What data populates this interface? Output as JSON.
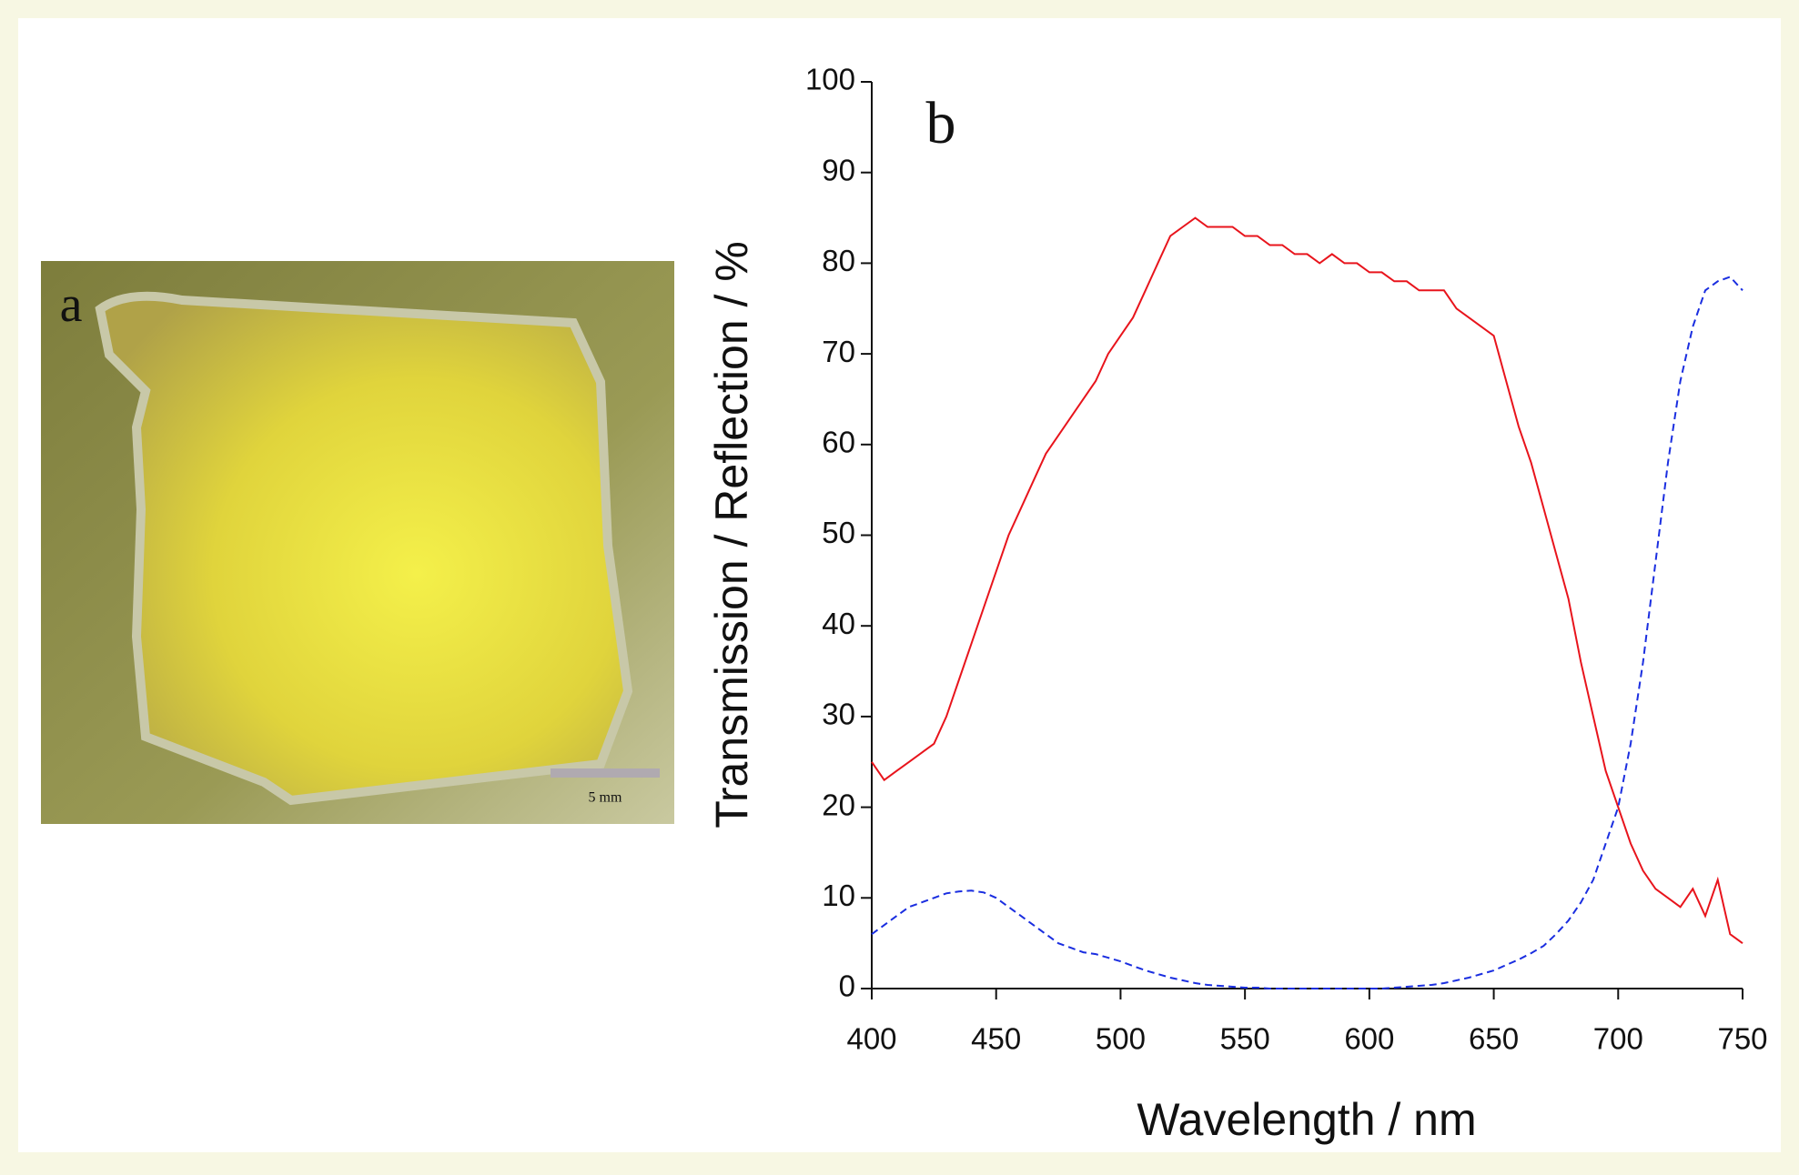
{
  "panel_a": {
    "label": "a",
    "scale_bar": "5 mm"
  },
  "chart_data": {
    "type": "line",
    "annotation": "b",
    "x_label": "Wavelength / nm",
    "y_label": "Transmission / Reflection / %",
    "x": [
      400,
      405,
      410,
      415,
      420,
      425,
      430,
      435,
      440,
      445,
      450,
      455,
      460,
      465,
      470,
      475,
      480,
      485,
      490,
      495,
      500,
      505,
      510,
      515,
      520,
      525,
      530,
      535,
      540,
      545,
      550,
      555,
      560,
      565,
      570,
      575,
      580,
      585,
      590,
      595,
      600,
      605,
      610,
      615,
      620,
      625,
      630,
      635,
      640,
      645,
      650,
      655,
      660,
      665,
      670,
      675,
      680,
      685,
      690,
      695,
      700,
      705,
      710,
      715,
      720,
      725,
      730,
      735,
      740,
      745,
      750
    ],
    "series": [
      {
        "color": "#e8141c",
        "dashed": false,
        "values": [
          25,
          23,
          24,
          25,
          26,
          27,
          30,
          34,
          38,
          42,
          46,
          50,
          53,
          56,
          59,
          61,
          63,
          65,
          67,
          70,
          72,
          74,
          77,
          80,
          83,
          84,
          85,
          84,
          84,
          84,
          83,
          83,
          82,
          82,
          81,
          81,
          80,
          81,
          80,
          80,
          79,
          79,
          78,
          78,
          77,
          77,
          77,
          75,
          74,
          73,
          72,
          67,
          62,
          58,
          53,
          48,
          43,
          36,
          30,
          24,
          20,
          16,
          13,
          11,
          10,
          9,
          11,
          8,
          12,
          6,
          5
        ]
      },
      {
        "color": "#1a2ee0",
        "dashed": true,
        "values": [
          6,
          7,
          8,
          9,
          9.5,
          10,
          10.5,
          10.7,
          10.8,
          10.6,
          10,
          9,
          8,
          7,
          6,
          5,
          4.5,
          4,
          3.8,
          3.4,
          3,
          2.5,
          2,
          1.6,
          1.2,
          0.9,
          0.6,
          0.4,
          0.3,
          0.2,
          0.1,
          0.1,
          0,
          0,
          0,
          0,
          0,
          0,
          0,
          0,
          0,
          0,
          0.1,
          0.2,
          0.3,
          0.4,
          0.6,
          0.9,
          1.2,
          1.6,
          2,
          2.6,
          3.2,
          3.9,
          4.7,
          6,
          7.5,
          9.5,
          12,
          16,
          20,
          27,
          36,
          47,
          58,
          67,
          73,
          77,
          78,
          78.5,
          77
        ]
      }
    ],
    "xlim": [
      400,
      750
    ],
    "ylim": [
      0,
      100
    ],
    "xticks": [
      400,
      450,
      500,
      550,
      600,
      650,
      700,
      750
    ],
    "yticks": [
      0,
      10,
      20,
      30,
      40,
      50,
      60,
      70,
      80,
      90,
      100
    ]
  }
}
